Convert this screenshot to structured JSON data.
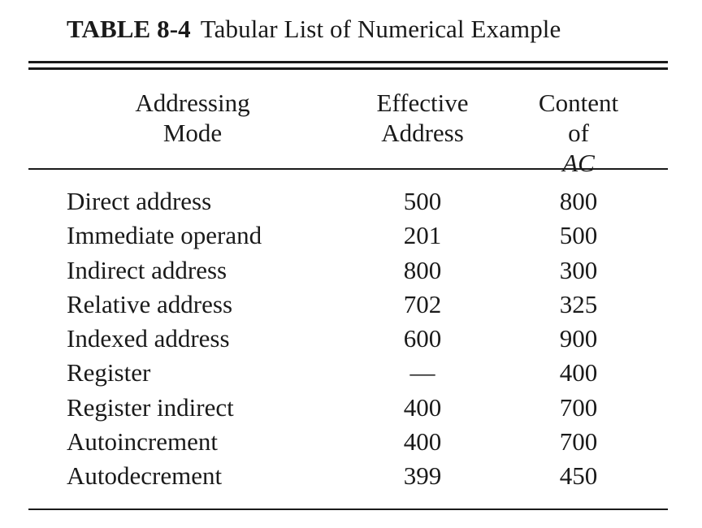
{
  "caption": {
    "number": "TABLE 8-4",
    "title": "Tabular List of Numerical Example"
  },
  "headers": {
    "mode": [
      "Addressing",
      "Mode"
    ],
    "effective_address": [
      "Effective",
      "Address"
    ],
    "content_ac_line1": "Content",
    "content_ac_prefix": "of ",
    "content_ac_italic": "AC"
  },
  "rows": [
    {
      "mode": "Direct address",
      "ea": "500",
      "ac": "800"
    },
    {
      "mode": "Immediate operand",
      "ea": "201",
      "ac": "500"
    },
    {
      "mode": "Indirect address",
      "ea": "800",
      "ac": "300"
    },
    {
      "mode": "Relative address",
      "ea": "702",
      "ac": "325"
    },
    {
      "mode": "Indexed address",
      "ea": "600",
      "ac": "900"
    },
    {
      "mode": "Register",
      "ea": "—",
      "ac": "400"
    },
    {
      "mode": "Register indirect",
      "ea": "400",
      "ac": "700"
    },
    {
      "mode": "Autoincrement",
      "ea": "400",
      "ac": "700"
    },
    {
      "mode": "Autodecrement",
      "ea": "399",
      "ac": "450"
    }
  ]
}
